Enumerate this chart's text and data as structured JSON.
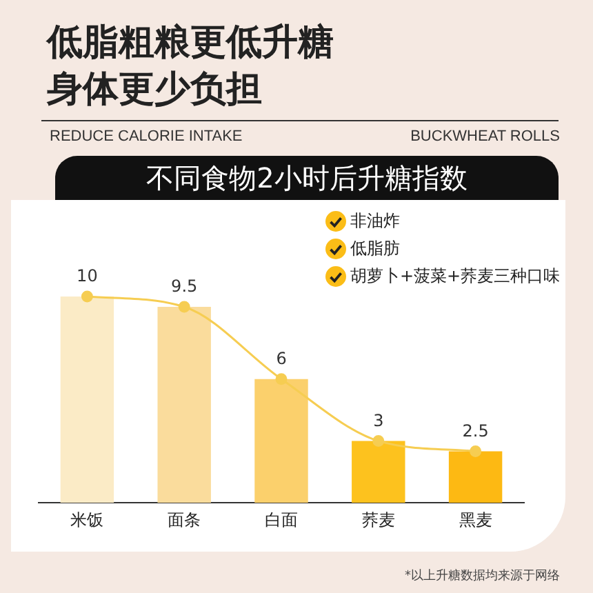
{
  "chart_data": {
    "type": "bar",
    "title": "不同食物2小时后升糖指数",
    "annotations": [
      "低脂粗粮更低升糖",
      "身体更少负担",
      "REDUCE CALORIE INTAKE",
      "BUCKWHEAT ROLLS",
      "非油炸",
      "低脂肪",
      "胡萝卜+菠菜+荞麦三种口味",
      "*以上升糖数据均来源于网络"
    ],
    "categories": [
      "米饭",
      "面条",
      "白面",
      "荞麦",
      "黑麦"
    ],
    "series": [
      {
        "colors": [
          "#fbebc6",
          "#fadc9c",
          "#fbd06c",
          "#fdc21e",
          "#fdb913"
        ],
        "values": [
          10,
          9.5,
          6,
          3,
          2.5
        ]
      },
      {
        "type": "line",
        "color": "#f6cd52",
        "values": [
          10,
          9.5,
          6,
          3,
          2.5
        ],
        "value_labels": [
          "10",
          "9.5",
          "6",
          "3",
          "2.5"
        ]
      }
    ],
    "marker": "circle",
    "legend": false,
    "grid": false
  }
}
